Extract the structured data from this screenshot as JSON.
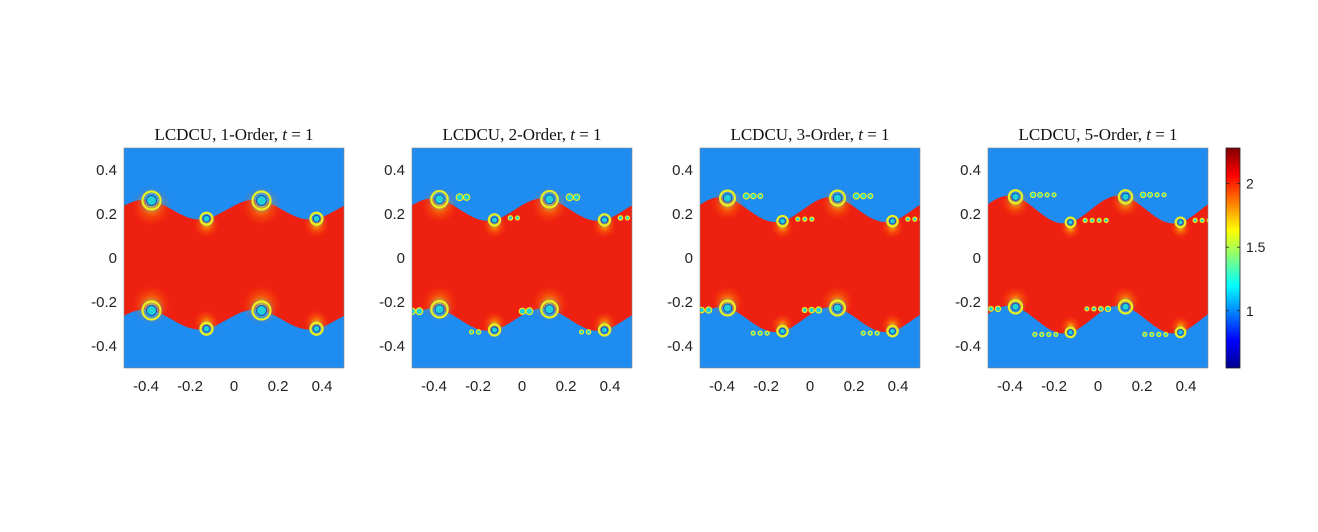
{
  "chart_data": [
    {
      "type": "heatmap",
      "title": {
        "prefix": "LCDCU, 1-Order, ",
        "var": "t",
        "suffix": " = 1"
      },
      "xticks": [
        "-0.4",
        "-0.2",
        "0",
        "0.2",
        "0.4"
      ],
      "yticks": [
        "0.4",
        "0.2",
        "0",
        "-0.2",
        "-0.4"
      ],
      "xlim": [
        -0.5,
        0.5
      ],
      "ylim": [
        -0.5,
        0.5
      ],
      "interface_y": [
        0.25,
        -0.25
      ],
      "vortex_x": [
        -0.375,
        -0.125,
        0.125,
        0.375
      ],
      "background_value": 1.0,
      "band_value": 2.0
    },
    {
      "type": "heatmap",
      "title": {
        "prefix": "LCDCU, 2-Order, ",
        "var": "t",
        "suffix": " = 1"
      },
      "xticks": [
        "-0.4",
        "-0.2",
        "0",
        "0.2",
        "0.4"
      ],
      "yticks": [
        "0.4",
        "0.2",
        "0",
        "-0.2",
        "-0.4"
      ],
      "xlim": [
        -0.5,
        0.5
      ],
      "ylim": [
        -0.5,
        0.5
      ],
      "interface_y": [
        0.25,
        -0.25
      ],
      "vortex_x": [
        -0.375,
        -0.125,
        0.125,
        0.375
      ],
      "background_value": 1.0,
      "band_value": 2.0
    },
    {
      "type": "heatmap",
      "title": {
        "prefix": "LCDCU, 3-Order, ",
        "var": "t",
        "suffix": " = 1"
      },
      "xticks": [
        "-0.4",
        "-0.2",
        "0",
        "0.2",
        "0.4"
      ],
      "yticks": [
        "0.4",
        "0.2",
        "0",
        "-0.2",
        "-0.4"
      ],
      "xlim": [
        -0.5,
        0.5
      ],
      "ylim": [
        -0.5,
        0.5
      ],
      "interface_y": [
        0.25,
        -0.25
      ],
      "vortex_x": [
        -0.375,
        -0.125,
        0.125,
        0.375
      ],
      "background_value": 1.0,
      "band_value": 2.0
    },
    {
      "type": "heatmap",
      "title": {
        "prefix": "LCDCU, 5-Order, ",
        "var": "t",
        "suffix": " = 1"
      },
      "xticks": [
        "-0.4",
        "-0.2",
        "0",
        "0.2",
        "0.4"
      ],
      "yticks": [
        "0.4",
        "0.2",
        "0",
        "-0.2",
        "-0.4"
      ],
      "xlim": [
        -0.5,
        0.5
      ],
      "ylim": [
        -0.5,
        0.5
      ],
      "interface_y": [
        0.25,
        -0.25
      ],
      "vortex_x": [
        -0.375,
        -0.125,
        0.125,
        0.375
      ],
      "background_value": 1.0,
      "band_value": 2.0
    }
  ],
  "colorbar": {
    "colormap": "jet",
    "range": [
      0.55,
      2.28
    ],
    "ticks": [
      {
        "value": 1,
        "label": "1"
      },
      {
        "value": 1.5,
        "label": "1.5"
      },
      {
        "value": 2,
        "label": "2"
      }
    ]
  },
  "colors": {
    "background": "#1e8cf0",
    "band": "#ee2010",
    "vortex_ring": "#e8f020",
    "vortex_core": "#22d0d8"
  }
}
